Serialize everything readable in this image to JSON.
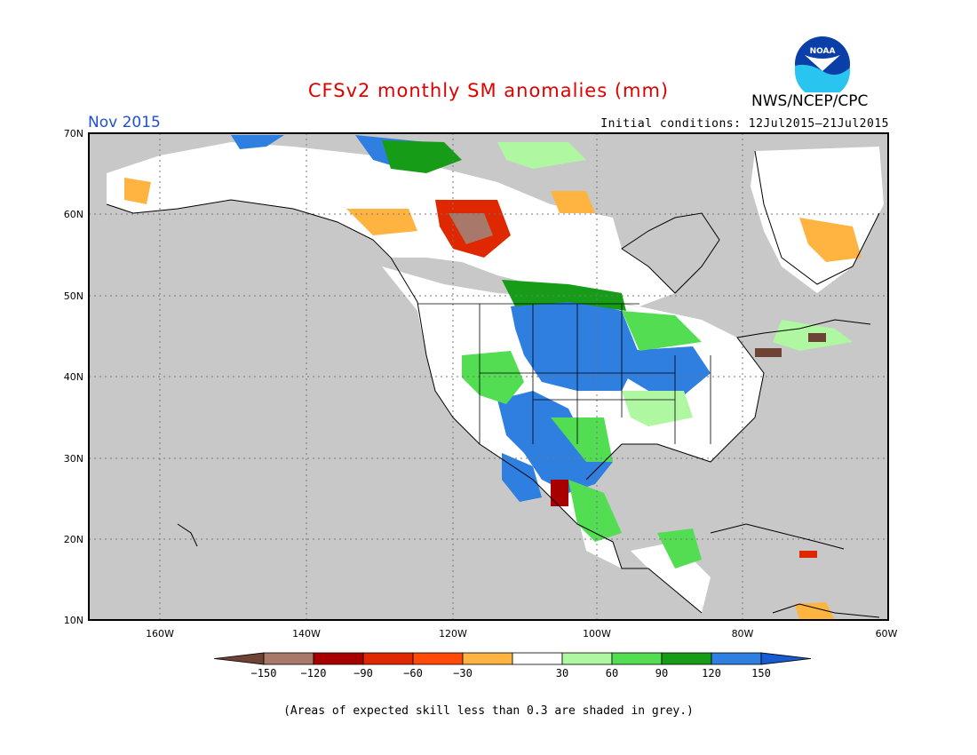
{
  "title": "CFSv2 monthly SM anomalies (mm)",
  "period": "Nov 2015",
  "initial_conditions": "Initial conditions: 12Jul2015–21Jul2015",
  "agency": "NWS/NCEP/CPC",
  "logo_text": "NOAA",
  "footnote": "(Areas of expected skill less than 0.3 are shaded in grey.)",
  "lat_labels": [
    "70N",
    "60N",
    "50N",
    "40N",
    "30N",
    "20N",
    "10N"
  ],
  "lon_labels": [
    "160W",
    "140W",
    "120W",
    "100W",
    "80W",
    "60W"
  ],
  "legend": {
    "tick_labels": [
      "−150",
      "−120",
      "−90",
      "−60",
      "−30",
      "30",
      "60",
      "90",
      "120",
      "150"
    ],
    "colors": [
      "#6e4234",
      "#a8786a",
      "#a80000",
      "#e02800",
      "#ff4a0a",
      "#ffb340",
      "#ffffff",
      "#aff7a0",
      "#52dd52",
      "#169c16",
      "#2e7fe0",
      "#1a5ad0"
    ]
  },
  "colors": {
    "grey_mask": "#c8c8c8",
    "title_red": "#e00000",
    "period_blue": "#1f4fd6"
  }
}
